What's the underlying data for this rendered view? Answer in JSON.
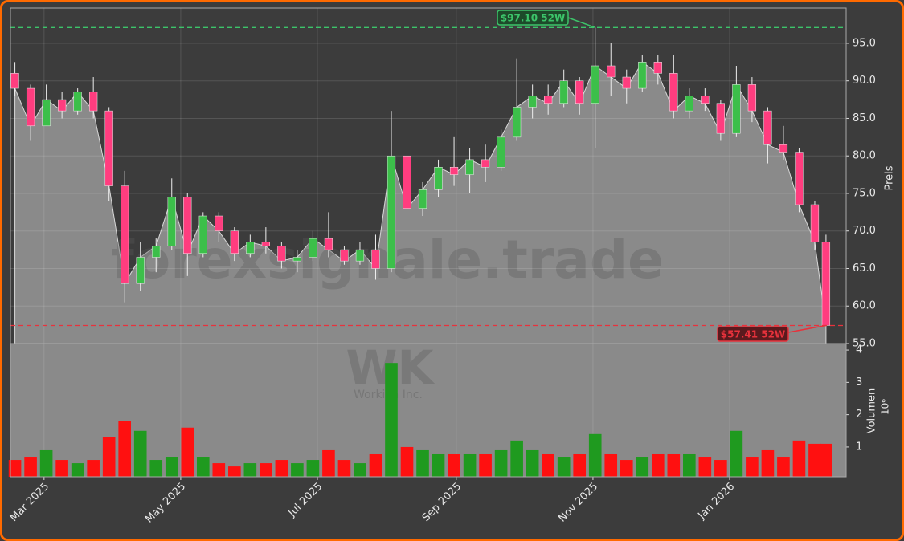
{
  "chart_data": {
    "type": "candlestick",
    "x": [
      2,
      9,
      16,
      23,
      30,
      37,
      44,
      51,
      58,
      65,
      72,
      79,
      86,
      93,
      100,
      107,
      114,
      121,
      128,
      135,
      142,
      149,
      156,
      163,
      170,
      177,
      184,
      191,
      198,
      205,
      212,
      219,
      226,
      233,
      240,
      247,
      254,
      261,
      268,
      275,
      282,
      289,
      296,
      303,
      310,
      317,
      324,
      331,
      338,
      345,
      352,
      359,
      364
    ],
    "open": [
      91,
      89,
      84,
      87.5,
      86,
      88.5,
      86,
      76,
      63,
      66.5,
      68,
      74.5,
      67,
      72,
      70,
      67,
      68.5,
      68,
      66,
      66.5,
      69,
      67.5,
      66,
      67.5,
      65,
      80,
      73,
      75.5,
      78.5,
      77.5,
      79.5,
      78.5,
      82.5,
      86.5,
      88,
      87,
      90,
      87,
      92,
      90.5,
      89,
      92.5,
      91,
      86,
      88,
      87,
      83,
      89.5,
      86,
      81.5,
      80.5,
      73.5,
      68.5
    ],
    "high": [
      92.5,
      89.5,
      89.5,
      88.5,
      89,
      90.5,
      86.5,
      78,
      68.5,
      69,
      77,
      75,
      72.5,
      72.5,
      70.5,
      69.5,
      70.5,
      68.5,
      67.5,
      70,
      72.5,
      68,
      68.5,
      69.5,
      86,
      80.5,
      76.5,
      79.5,
      82.5,
      81,
      81.5,
      83.5,
      93,
      89.5,
      89.5,
      91.5,
      90.5,
      97.1,
      95,
      91.5,
      93.5,
      93.5,
      93.5,
      89,
      89,
      87.5,
      92,
      90.5,
      86.5,
      84,
      81,
      74,
      69.5
    ],
    "low": [
      88,
      82,
      84,
      85,
      85.5,
      85,
      74,
      60.5,
      62,
      64.5,
      67.5,
      64,
      66.5,
      68.5,
      66,
      66.5,
      67,
      65,
      64.5,
      66,
      66.5,
      65.5,
      65.5,
      63.5,
      64.5,
      71,
      72,
      74.5,
      76,
      75,
      76.5,
      78,
      82,
      85,
      85.5,
      86.5,
      85.5,
      81,
      88,
      87,
      88.5,
      89.5,
      85,
      85,
      86,
      82,
      82.5,
      84.5,
      79,
      79.5,
      72.5,
      67.5,
      57.41
    ],
    "close": [
      89,
      84,
      87.5,
      86,
      88.5,
      86,
      76,
      63,
      66.5,
      68,
      74.5,
      67,
      72,
      70,
      67,
      68.5,
      68,
      66,
      66.5,
      69,
      67.5,
      66,
      67.5,
      65,
      80,
      73,
      75.5,
      78.5,
      77.5,
      79.5,
      78.5,
      82.5,
      86.5,
      88,
      87,
      90,
      87,
      92,
      90.5,
      89,
      92.5,
      91,
      86,
      88,
      87,
      83,
      89.5,
      86,
      81.5,
      80.5,
      73.5,
      68.5,
      57.41
    ],
    "xlim": [
      0,
      373
    ],
    "xticks": [
      {
        "value": 15,
        "label": "Mar 2025"
      },
      {
        "value": 76,
        "label": "May 2025"
      },
      {
        "value": 137,
        "label": "Jul 2025"
      },
      {
        "value": 199,
        "label": "Sep 2025"
      },
      {
        "value": 260,
        "label": "Nov 2025"
      },
      {
        "value": 321,
        "label": "Jan 2026"
      }
    ],
    "ylim": [
      55,
      99.7
    ],
    "yticks": [
      {
        "value": 55,
        "label": "55.0"
      },
      {
        "value": 60,
        "label": "60.0"
      },
      {
        "value": 65,
        "label": "65.0"
      },
      {
        "value": 70,
        "label": "70.0"
      },
      {
        "value": 75,
        "label": "75.0"
      },
      {
        "value": 80,
        "label": "80.0"
      },
      {
        "value": 85,
        "label": "85.0"
      },
      {
        "value": 90,
        "label": "90.0"
      },
      {
        "value": 95,
        "label": "95.0"
      }
    ],
    "ylabel": "Preis",
    "grid": true,
    "up_color": "#3cbf4a",
    "down_color": "#ff3d7f",
    "area_color": "#8a8a8a",
    "hlines": [
      {
        "value": 97.1,
        "label": "$97.10 52W",
        "color": "#3cc46a"
      },
      {
        "value": 57.41,
        "label": "$57.41 52W",
        "color": "#e8323c"
      }
    ],
    "watermark": "forexsignale.trade",
    "ticker": "WK",
    "company": "Workiva Inc.",
    "volume": {
      "values": [
        0.6,
        0.7,
        0.9,
        0.6,
        0.5,
        0.6,
        1.3,
        1.8,
        1.5,
        0.6,
        0.7,
        1.6,
        0.7,
        0.5,
        0.4,
        0.5,
        0.5,
        0.6,
        0.5,
        0.6,
        0.9,
        0.6,
        0.5,
        0.8,
        3.6,
        1.0,
        0.9,
        0.8,
        0.8,
        0.8,
        0.8,
        0.9,
        1.2,
        0.9,
        0.8,
        0.7,
        0.8,
        1.4,
        0.8,
        0.6,
        0.7,
        0.8,
        0.8,
        0.8,
        0.7,
        0.6,
        1.5,
        0.7,
        0.9,
        0.7,
        1.2,
        1.1,
        1.1
      ],
      "ylim": [
        0.08,
        4.2
      ],
      "yticks": [
        1,
        2,
        3,
        4
      ],
      "ylabel": "Volumen",
      "multiplier": "10⁶",
      "up_color": "#1f9a1f",
      "down_color": "#ff1010"
    }
  }
}
